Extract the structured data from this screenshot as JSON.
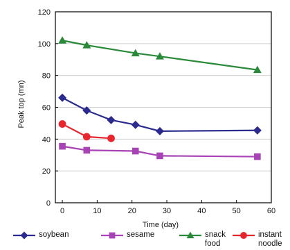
{
  "chart_data": {
    "type": "line",
    "xlabel": "Time  (day)",
    "ylabel": "Peak top  (mn)",
    "xlim": [
      -2,
      60
    ],
    "ylim": [
      0,
      120
    ],
    "xticks": [
      "0",
      "10",
      "20",
      "30",
      "40",
      "50",
      "60"
    ],
    "yticks": [
      "0",
      "20",
      "40",
      "60",
      "80",
      "100",
      "120"
    ],
    "grid": "horizontal",
    "legend": "bottom",
    "series": [
      {
        "name": "soybean",
        "color": "#2b2b8f",
        "marker": "diamond",
        "x": [
          0,
          7,
          14,
          21,
          28,
          56
        ],
        "y": [
          66,
          58,
          52,
          49,
          45,
          45.5
        ]
      },
      {
        "name": "sesame",
        "color": "#a843b5",
        "marker": "square",
        "x": [
          0,
          7,
          21,
          28,
          56
        ],
        "y": [
          35.5,
          33,
          32.5,
          29.5,
          29
        ]
      },
      {
        "name": "snack\nfood",
        "color": "#2a8a3a",
        "marker": "triangle",
        "x": [
          0,
          7,
          21,
          28,
          56
        ],
        "y": [
          102,
          99,
          94,
          92,
          83.5
        ]
      },
      {
        "name": "instant\nnoodle",
        "color": "#e8262e",
        "marker": "circle",
        "x": [
          0,
          7,
          14
        ],
        "y": [
          49.5,
          41.5,
          40.5
        ]
      }
    ]
  }
}
